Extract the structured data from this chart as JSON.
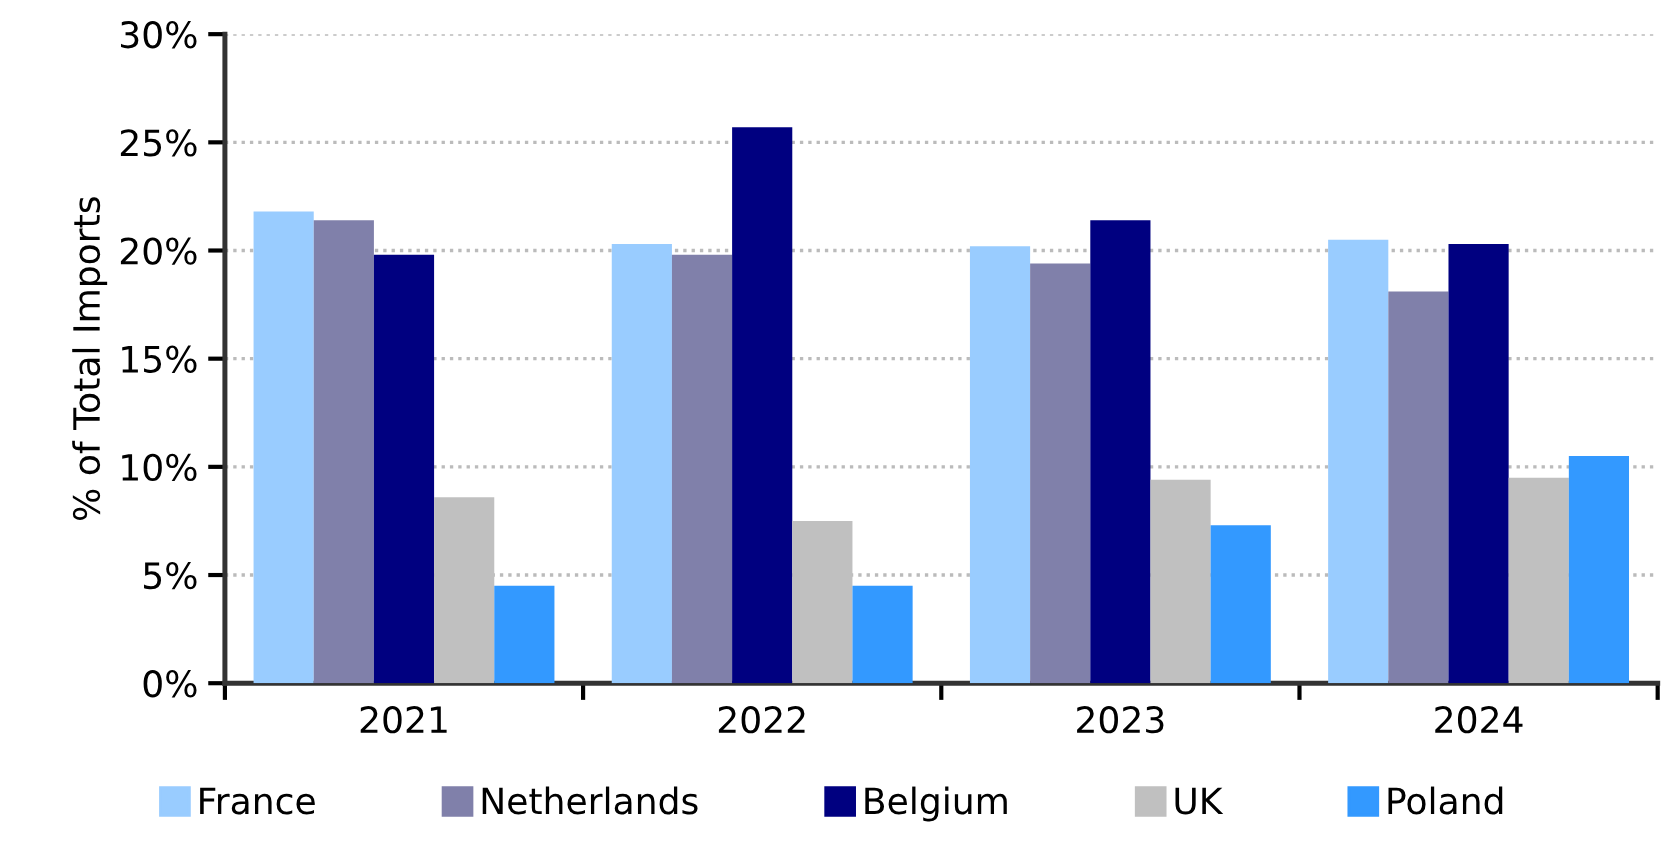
{
  "chart_data": {
    "type": "bar",
    "ylabel": "% of Total Imports",
    "categories": [
      "2021",
      "2022",
      "2023",
      "2024"
    ],
    "series": [
      {
        "name": "France",
        "color": "#99ccff",
        "values": [
          21.8,
          20.3,
          20.2,
          20.5
        ]
      },
      {
        "name": "Netherlands",
        "color": "#8080aa",
        "values": [
          21.4,
          19.8,
          19.4,
          18.1
        ]
      },
      {
        "name": "Belgium",
        "color": "#000080",
        "values": [
          19.8,
          25.7,
          21.4,
          20.3
        ]
      },
      {
        "name": "UK",
        "color": "#c0c0c0",
        "values": [
          8.6,
          7.5,
          9.4,
          9.5
        ]
      },
      {
        "name": "Poland",
        "color": "#3399ff",
        "values": [
          4.5,
          4.5,
          7.3,
          10.5
        ]
      }
    ],
    "ylim": [
      0,
      30
    ],
    "yticks": [
      {
        "value": 0,
        "label": "0%"
      },
      {
        "value": 5,
        "label": "5%"
      },
      {
        "value": 10,
        "label": "10%"
      },
      {
        "value": 15,
        "label": "15%"
      },
      {
        "value": 20,
        "label": "20%"
      },
      {
        "value": 25,
        "label": "25%"
      },
      {
        "value": 30,
        "label": "30%"
      }
    ],
    "grid": "y",
    "legend": "bottom"
  }
}
